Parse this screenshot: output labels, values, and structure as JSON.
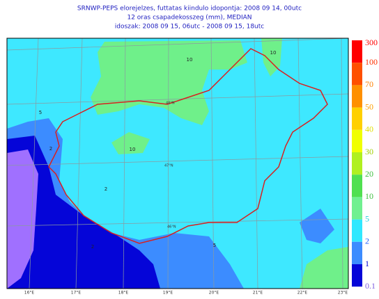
{
  "header": {
    "lines": [
      "SRNWP-PEPS elorejelzes, futtatas kiindulo idopontja: 2008 09 14, 00utc",
      "12 oras csapadekosszeg (mm), MEDIAN",
      "idoszak: 2008 09 15, 06utc - 2008 09 15, 18utc"
    ]
  },
  "legend": {
    "labels": [
      "300",
      "100",
      "70",
      "50",
      "40",
      "30",
      "20",
      "10",
      "5",
      "2",
      "1",
      "0.1"
    ]
  },
  "map": {
    "longitude_labels": [
      "16°E",
      "17°E",
      "18°E",
      "19°E",
      "20°E",
      "21°E",
      "22°E",
      "23°E"
    ],
    "latitude_labels": [
      "48°N",
      "47°N",
      "46°N"
    ],
    "contour_labels": [
      "10",
      "10",
      "10",
      "5",
      "2",
      "2",
      "5",
      "2"
    ]
  }
}
